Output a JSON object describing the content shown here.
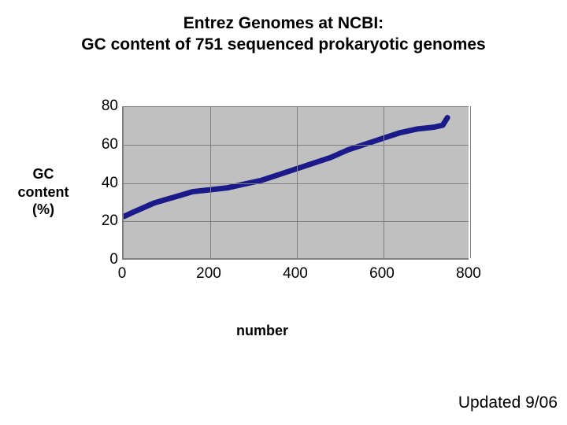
{
  "title_line1": "Entrez Genomes at NCBI:",
  "title_line2": "GC content of 751 sequenced prokaryotic genomes",
  "y_axis_label": "GC content (%)",
  "x_axis_label": "number",
  "updated_text": "Updated 9/06",
  "chart": {
    "type": "line",
    "background_color": "#c0c0c0",
    "grid_color": "#808080",
    "series_color": "#1a1a8a",
    "series_stroke_width": 7,
    "xlim": [
      0,
      800
    ],
    "ylim": [
      0,
      80
    ],
    "x_ticks": [
      0,
      200,
      400,
      600,
      800
    ],
    "y_ticks": [
      0,
      20,
      40,
      60,
      80
    ],
    "tick_fontsize": 19,
    "data": [
      {
        "x": 1,
        "y": 22
      },
      {
        "x": 20,
        "y": 24
      },
      {
        "x": 40,
        "y": 26
      },
      {
        "x": 70,
        "y": 29
      },
      {
        "x": 100,
        "y": 31
      },
      {
        "x": 130,
        "y": 33
      },
      {
        "x": 160,
        "y": 35
      },
      {
        "x": 200,
        "y": 36
      },
      {
        "x": 240,
        "y": 37
      },
      {
        "x": 280,
        "y": 39
      },
      {
        "x": 320,
        "y": 41
      },
      {
        "x": 360,
        "y": 44
      },
      {
        "x": 400,
        "y": 47
      },
      {
        "x": 440,
        "y": 50
      },
      {
        "x": 480,
        "y": 53
      },
      {
        "x": 520,
        "y": 57
      },
      {
        "x": 560,
        "y": 60
      },
      {
        "x": 600,
        "y": 63
      },
      {
        "x": 640,
        "y": 66
      },
      {
        "x": 680,
        "y": 68
      },
      {
        "x": 720,
        "y": 69
      },
      {
        "x": 740,
        "y": 70
      },
      {
        "x": 751,
        "y": 74
      }
    ]
  }
}
